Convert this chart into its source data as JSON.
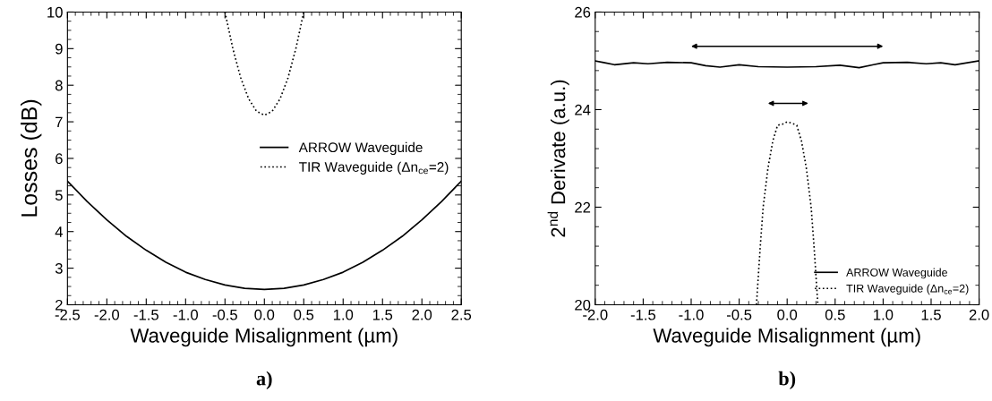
{
  "chart_data": [
    {
      "type": "line",
      "title": "a)",
      "xlabel": "Waveguide Misalignment (µm)",
      "ylabel": "Losses (dB)",
      "xlim": [
        -2.5,
        2.5
      ],
      "ylim": [
        2,
        10
      ],
      "xticks": [
        {
          "value": -2.5,
          "label": "-2.5"
        },
        {
          "value": -2.0,
          "label": "-2.0"
        },
        {
          "value": -1.5,
          "label": "-1.5"
        },
        {
          "value": -1.0,
          "label": "-1.0"
        },
        {
          "value": -0.5,
          "label": "-0.5"
        },
        {
          "value": 0,
          "label": "0.0"
        },
        {
          "value": 0.5,
          "label": "0.5"
        },
        {
          "value": 1.0,
          "label": "1.0"
        },
        {
          "value": 1.5,
          "label": "1.5"
        },
        {
          "value": 2.0,
          "label": "2.0"
        },
        {
          "value": 2.5,
          "label": "2.5"
        }
      ],
      "yticks": [
        2,
        3,
        4,
        5,
        6,
        7,
        8,
        9,
        10
      ],
      "legend": "center right",
      "grid": false,
      "series": [
        {
          "name": "ARROW Waveguide",
          "color": "#000000",
          "line_style": "solid",
          "x": [
            -2.5,
            -2.25,
            -2.0,
            -1.75,
            -1.5,
            -1.25,
            -1.0,
            -0.75,
            -0.5,
            -0.25,
            0,
            0.25,
            0.5,
            0.75,
            1.0,
            1.25,
            1.5,
            1.75,
            2.0,
            2.25,
            2.5
          ],
          "values": [
            5.38,
            4.82,
            4.32,
            3.87,
            3.49,
            3.16,
            2.89,
            2.69,
            2.54,
            2.45,
            2.42,
            2.45,
            2.54,
            2.69,
            2.89,
            3.16,
            3.49,
            3.87,
            4.32,
            4.82,
            5.38
          ]
        },
        {
          "name": "TIR Waveguide (Δn$_{ce}$=2)",
          "color": "#000000",
          "line_style": "dotted",
          "x": [
            -0.5,
            -0.4,
            -0.3,
            -0.2,
            -0.1,
            0,
            0.1,
            0.2,
            0.3,
            0.4,
            0.5
          ],
          "values": [
            10.0,
            9.0,
            8.2,
            7.63,
            7.29,
            7.18,
            7.29,
            7.63,
            8.2,
            9.0,
            10.0
          ]
        }
      ]
    },
    {
      "type": "line",
      "title": "b)",
      "xlabel": "Waveguide Misalignment (µm)",
      "ylabel": "2$^{nd}$ Derivate (a.u.)",
      "xlim": [
        -2.0,
        2.0
      ],
      "ylim": [
        20,
        26
      ],
      "xticks": [
        {
          "value": -2.0,
          "label": "-2.0"
        },
        {
          "value": -1.5,
          "label": "-1.5"
        },
        {
          "value": -1.0,
          "label": "-1.0"
        },
        {
          "value": -0.5,
          "label": "-0.5"
        },
        {
          "value": 0,
          "label": "0.0"
        },
        {
          "value": 0.5,
          "label": "0.5"
        },
        {
          "value": 1.0,
          "label": "1.0"
        },
        {
          "value": 1.5,
          "label": "1.5"
        },
        {
          "value": 2.0,
          "label": "2.0"
        }
      ],
      "yticks": [
        20,
        22,
        24,
        26
      ],
      "legend": "bottom right",
      "grid": false,
      "series": [
        {
          "name": "ARROW Waveguide",
          "color": "#000000",
          "line_style": "solid",
          "x": [
            -2.0,
            -1.9,
            -1.8,
            -1.6,
            -1.45,
            -1.25,
            -1.0,
            -0.85,
            -0.7,
            -0.5,
            -0.3,
            0,
            0.3,
            0.55,
            0.75,
            0.9,
            1.0,
            1.25,
            1.45,
            1.6,
            1.75,
            2.0
          ],
          "values": [
            25.0,
            24.96,
            24.92,
            24.96,
            24.94,
            24.97,
            24.96,
            24.9,
            24.87,
            24.92,
            24.88,
            24.87,
            24.88,
            24.91,
            24.86,
            24.92,
            24.96,
            24.97,
            24.94,
            24.96,
            24.92,
            25.0
          ]
        },
        {
          "name": "TIR Waveguide (Δn$_{ce}$=2)",
          "color": "#000000",
          "line_style": "dotted",
          "x": [
            -0.32,
            -0.3,
            -0.28,
            -0.25,
            -0.2,
            -0.15,
            -0.1,
            -0.05,
            0,
            0.05,
            0.1,
            0.15,
            0.2,
            0.25,
            0.28,
            0.3,
            0.32
          ],
          "values": [
            20.0,
            20.6,
            21.2,
            22.0,
            22.8,
            23.35,
            23.68,
            23.7,
            23.75,
            23.72,
            23.68,
            23.35,
            22.8,
            22.0,
            21.2,
            20.6,
            20.0
          ]
        }
      ]
    }
  ]
}
